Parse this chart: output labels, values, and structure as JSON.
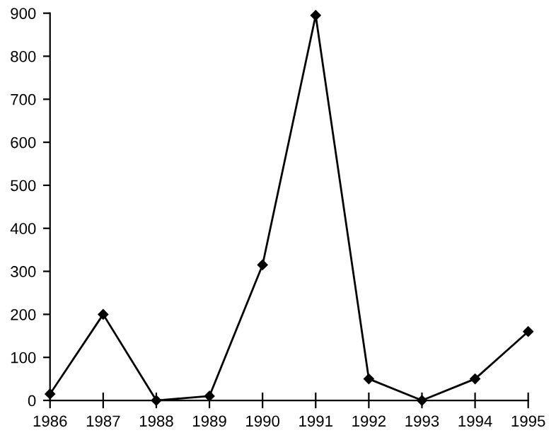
{
  "chart_data": {
    "type": "line",
    "x": [
      1986,
      1987,
      1988,
      1989,
      1990,
      1991,
      1992,
      1993,
      1994,
      1995
    ],
    "series": [
      {
        "color": "#000000",
        "values": [
          15,
          200,
          0,
          10,
          315,
          895,
          50,
          0,
          50,
          160
        ]
      }
    ],
    "xlim": [
      1986,
      1995
    ],
    "xticks": [
      1986,
      1987,
      1988,
      1989,
      1990,
      1991,
      1992,
      1993,
      1994,
      1995
    ],
    "ylim": [
      0,
      900
    ],
    "yticks": [
      0,
      100,
      200,
      300,
      400,
      500,
      600,
      700,
      800,
      900
    ],
    "marker": "diamond",
    "line_style": "solid",
    "grid": false,
    "legend": false
  }
}
